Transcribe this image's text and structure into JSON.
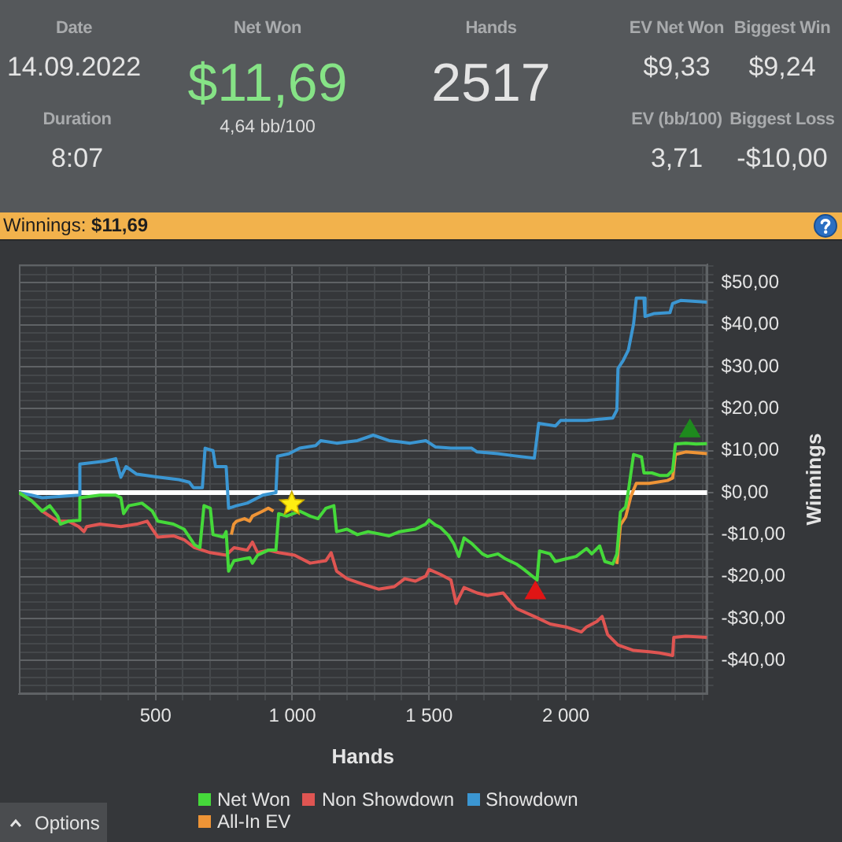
{
  "chart_data": [
    {
      "type": "other",
      "annotations": [
        "Date",
        "14.09.2022",
        "Duration",
        "8:07",
        "Net Won",
        "$11,69",
        "4,64 bb/100",
        "Hands",
        "2517",
        "EV Net Won",
        "$9,33",
        "Biggest Win",
        "$9,24",
        "EV (bb/100)",
        "3,71",
        "Biggest Loss",
        "-$10,00"
      ]
    },
    {
      "type": "line",
      "title": "Winnings: $11,69",
      "xlabel": "Hands",
      "ylabel": "Winnings",
      "xlim": [
        0,
        2517
      ],
      "ylim": [
        -48,
        54.4
      ],
      "xticks": [
        {
          "value": 100,
          "label": null
        },
        {
          "value": 200,
          "label": null
        },
        {
          "value": 300,
          "label": null
        },
        {
          "value": 400,
          "label": null
        },
        500,
        {
          "value": 600,
          "label": null
        },
        {
          "value": 700,
          "label": null
        },
        {
          "value": 800,
          "label": null
        },
        {
          "value": 900,
          "label": null
        },
        {
          "value": 1000,
          "label": "1 000"
        },
        {
          "value": 1100,
          "label": null
        },
        {
          "value": 1200,
          "label": null
        },
        {
          "value": 1300,
          "label": null
        },
        {
          "value": 1400,
          "label": null
        },
        {
          "value": 1500,
          "label": "1 500"
        },
        {
          "value": 1600,
          "label": null
        },
        {
          "value": 1700,
          "label": null
        },
        {
          "value": 1800,
          "label": null
        },
        {
          "value": 1900,
          "label": null
        },
        {
          "value": 2000,
          "label": "2 000"
        },
        {
          "value": 2100,
          "label": null
        },
        {
          "value": 2200,
          "label": null
        },
        {
          "value": 2300,
          "label": null
        },
        {
          "value": 2400,
          "label": null
        },
        {
          "value": 2500,
          "label": null
        }
      ],
      "yticks": [
        {
          "value": -46,
          "label": null
        },
        {
          "value": -44,
          "label": null
        },
        {
          "value": -42,
          "label": null
        },
        {
          "value": -40,
          "label": "-$40,00"
        },
        {
          "value": -38,
          "label": null
        },
        {
          "value": -36,
          "label": null
        },
        {
          "value": -34,
          "label": null
        },
        {
          "value": -32,
          "label": null
        },
        {
          "value": -30,
          "label": "-$30,00"
        },
        {
          "value": -28,
          "label": null
        },
        {
          "value": -26,
          "label": null
        },
        {
          "value": -24,
          "label": null
        },
        {
          "value": -22,
          "label": null
        },
        {
          "value": -20,
          "label": "-$20,00"
        },
        {
          "value": -18,
          "label": null
        },
        {
          "value": -16,
          "label": null
        },
        {
          "value": -14,
          "label": null
        },
        {
          "value": -12,
          "label": null
        },
        {
          "value": -10,
          "label": "-$10,00"
        },
        {
          "value": -8,
          "label": null
        },
        {
          "value": -6,
          "label": null
        },
        {
          "value": -4,
          "label": null
        },
        {
          "value": -2,
          "label": null
        },
        {
          "value": 0,
          "label": "$0,00"
        },
        {
          "value": 2,
          "label": null
        },
        {
          "value": 4,
          "label": null
        },
        {
          "value": 6,
          "label": null
        },
        {
          "value": 8,
          "label": null
        },
        {
          "value": 10,
          "label": "$10,00"
        },
        {
          "value": 12,
          "label": null
        },
        {
          "value": 14,
          "label": null
        },
        {
          "value": 16,
          "label": null
        },
        {
          "value": 18,
          "label": null
        },
        {
          "value": 20,
          "label": "$20,00"
        },
        {
          "value": 22,
          "label": null
        },
        {
          "value": 24,
          "label": null
        },
        {
          "value": 26,
          "label": null
        },
        {
          "value": 28,
          "label": null
        },
        {
          "value": 30,
          "label": "$30,00"
        },
        {
          "value": 32,
          "label": null
        },
        {
          "value": 34,
          "label": null
        },
        {
          "value": 36,
          "label": null
        },
        {
          "value": 38,
          "label": null
        },
        {
          "value": 40,
          "label": "$40,00"
        },
        {
          "value": 42,
          "label": null
        },
        {
          "value": 44,
          "label": null
        },
        {
          "value": 46,
          "label": null
        },
        {
          "value": 48,
          "label": null
        },
        {
          "value": 50,
          "label": "$50,00"
        },
        {
          "value": 52,
          "label": null
        },
        {
          "value": 54,
          "label": null
        }
      ],
      "grid": true,
      "legend": "bottom",
      "ref_lines": [
        {
          "axis": "y",
          "value": 0,
          "color": "#ffffff"
        }
      ],
      "annotations": [
        "Options"
      ],
      "series": [
        {
          "name": "Net Won",
          "color": "#45d93a",
          "x": [
            0,
            46,
            85,
            113,
            142,
            152,
            181,
            219,
            223,
            296,
            354,
            373,
            383,
            402,
            450,
            488,
            508,
            565,
            604,
            642,
            662,
            677,
            700,
            710,
            748,
            758,
            767,
            787,
            844,
            854,
            873,
            912,
            940,
            950,
            979,
            1027,
            1065,
            1094,
            1123,
            1152,
            1162,
            1200,
            1238,
            1277,
            1354,
            1392,
            1450,
            1488,
            1500,
            1523,
            1542,
            1571,
            1590,
            1609,
            1628,
            1656,
            1695,
            1714,
            1752,
            1780,
            1819,
            1847,
            1895,
            1904,
            1943,
            1962,
            2000,
            2038,
            2076,
            2095,
            2124,
            2143,
            2172,
            2187,
            2200,
            2219,
            2229,
            2248,
            2277,
            2286,
            2315,
            2343,
            2372,
            2391,
            2401,
            2439,
            2477,
            2517
          ],
          "values": [
            0,
            -1.9,
            -4.4,
            -3.1,
            -5.6,
            -7.5,
            -6.8,
            -6.6,
            -1.2,
            -0.6,
            -0.6,
            -1.2,
            -5.0,
            -3.1,
            -2.5,
            -4.4,
            -6.8,
            -7.5,
            -8.7,
            -12.4,
            -13.1,
            -3.1,
            -3.7,
            -10.0,
            -10.6,
            -9.3,
            -18.7,
            -16.2,
            -15.5,
            -16.8,
            -14.9,
            -13.7,
            -13.7,
            -5.0,
            -5.6,
            -4.4,
            -5.6,
            -6.2,
            -3.7,
            -3.1,
            -9.3,
            -8.7,
            -10.0,
            -9.3,
            -10.3,
            -9.3,
            -8.7,
            -7.5,
            -6.5,
            -7.7,
            -8.3,
            -10.2,
            -12.1,
            -15.2,
            -10.8,
            -12.1,
            -14.6,
            -15.2,
            -14.6,
            -15.8,
            -17.0,
            -18.3,
            -20.8,
            -13.9,
            -14.6,
            -16.4,
            -15.8,
            -15.2,
            -13.3,
            -14.6,
            -12.7,
            -16.4,
            -17.0,
            -14.6,
            -4.6,
            -3.4,
            0.4,
            9.1,
            8.5,
            4.7,
            4.7,
            4.1,
            4.1,
            5.3,
            11.6,
            11.8,
            11.6,
            11.7
          ]
        },
        {
          "name": "Non Showdown",
          "color": "#df5552",
          "x": [
            0,
            46,
            85,
            142,
            181,
            219,
            238,
            248,
            296,
            373,
            431,
            469,
            488,
            508,
            565,
            604,
            642,
            700,
            758,
            787,
            835,
            854,
            873,
            912,
            950,
            1008,
            1065,
            1123,
            1142,
            1162,
            1200,
            1258,
            1315,
            1373,
            1411,
            1450,
            1488,
            1500,
            1542,
            1580,
            1599,
            1628,
            1676,
            1714,
            1771,
            1819,
            1885,
            1943,
            2000,
            2057,
            2076,
            2114,
            2133,
            2153,
            2191,
            2248,
            2305,
            2343,
            2391,
            2395,
            2439,
            2517
          ],
          "values": [
            0,
            -1.9,
            -4.4,
            -6.8,
            -6.8,
            -8.1,
            -9.3,
            -8.1,
            -7.5,
            -8.1,
            -7.5,
            -6.8,
            -8.7,
            -10.6,
            -10.3,
            -11.2,
            -13.1,
            -14.3,
            -14.9,
            -13.1,
            -13.7,
            -11.8,
            -14.3,
            -13.7,
            -14.3,
            -14.9,
            -16.8,
            -16.2,
            -14.3,
            -18.7,
            -20.5,
            -21.8,
            -23.0,
            -22.4,
            -20.5,
            -21.1,
            -19.9,
            -18.3,
            -19.5,
            -20.8,
            -26.4,
            -22.6,
            -23.9,
            -24.5,
            -23.9,
            -27.6,
            -29.5,
            -31.3,
            -32.0,
            -33.2,
            -32.0,
            -30.7,
            -29.5,
            -33.8,
            -36.3,
            -37.6,
            -37.9,
            -38.2,
            -38.8,
            -34.5,
            -34.2,
            -34.5
          ]
        },
        {
          "name": "Showdown",
          "color": "#3b96d2",
          "x": [
            0,
            46,
            85,
            219,
            223,
            315,
            354,
            373,
            392,
            431,
            508,
            585,
            623,
            638,
            671,
            681,
            710,
            719,
            758,
            767,
            796,
            835,
            892,
            940,
            946,
            988,
            1027,
            1085,
            1104,
            1162,
            1238,
            1296,
            1354,
            1431,
            1488,
            1523,
            1580,
            1656,
            1676,
            1752,
            1809,
            1885,
            1901,
            1962,
            1981,
            2076,
            2172,
            2187,
            2191,
            2210,
            2229,
            2248,
            2258,
            2286,
            2290,
            2324,
            2381,
            2391,
            2420,
            2517
          ],
          "values": [
            0,
            -0.6,
            -1.2,
            -0.6,
            6.8,
            7.5,
            8.1,
            3.7,
            6.2,
            4.4,
            3.7,
            3.1,
            2.5,
            1.2,
            1.2,
            10.6,
            10.0,
            6.2,
            6.2,
            -3.7,
            -3.1,
            -2.5,
            -0.6,
            0,
            8.7,
            9.3,
            10.6,
            11.2,
            12.4,
            11.8,
            12.4,
            13.7,
            12.4,
            11.8,
            12.4,
            10.9,
            10.6,
            10.6,
            9.7,
            9.3,
            8.8,
            8.2,
            16.5,
            15.9,
            17.2,
            17.2,
            17.8,
            19.7,
            29.6,
            31.5,
            34.0,
            40.2,
            46.4,
            46.4,
            42.0,
            42.7,
            42.9,
            45.1,
            45.8,
            45.4
          ]
        },
        {
          "name": "All-In EV",
          "color": "#ee9436",
          "x": [
            777,
            786,
            796,
            825,
            844,
            854,
            892,
            912,
            931,
            2000,
            2187,
            2200,
            2219,
            2238,
            2258,
            2305,
            2372,
            2391,
            2401,
            2439,
            2517
          ],
          "values": [
            -10.0,
            -7.5,
            -6.8,
            -6.2,
            -6.8,
            -5.6,
            -4.4,
            -3.7,
            -4.4,
            null,
            -17.0,
            -7.7,
            -5.8,
            -0.9,
            2.2,
            2.2,
            2.9,
            3.5,
            9.1,
            9.7,
            9.3
          ]
        },
        {
          "type": "scatter",
          "color": "#ffee11",
          "marker": "star",
          "x": [
            998
          ],
          "values": [
            -2.7
          ]
        },
        {
          "type": "scatter",
          "color": "#e01515",
          "marker": "triangle",
          "x": [
            1889
          ],
          "values": [
            -23.9
          ]
        },
        {
          "type": "scatter",
          "color": "#1e8a1e",
          "marker": "triangle",
          "x": [
            2454
          ],
          "values": [
            14.7
          ]
        }
      ]
    }
  ]
}
